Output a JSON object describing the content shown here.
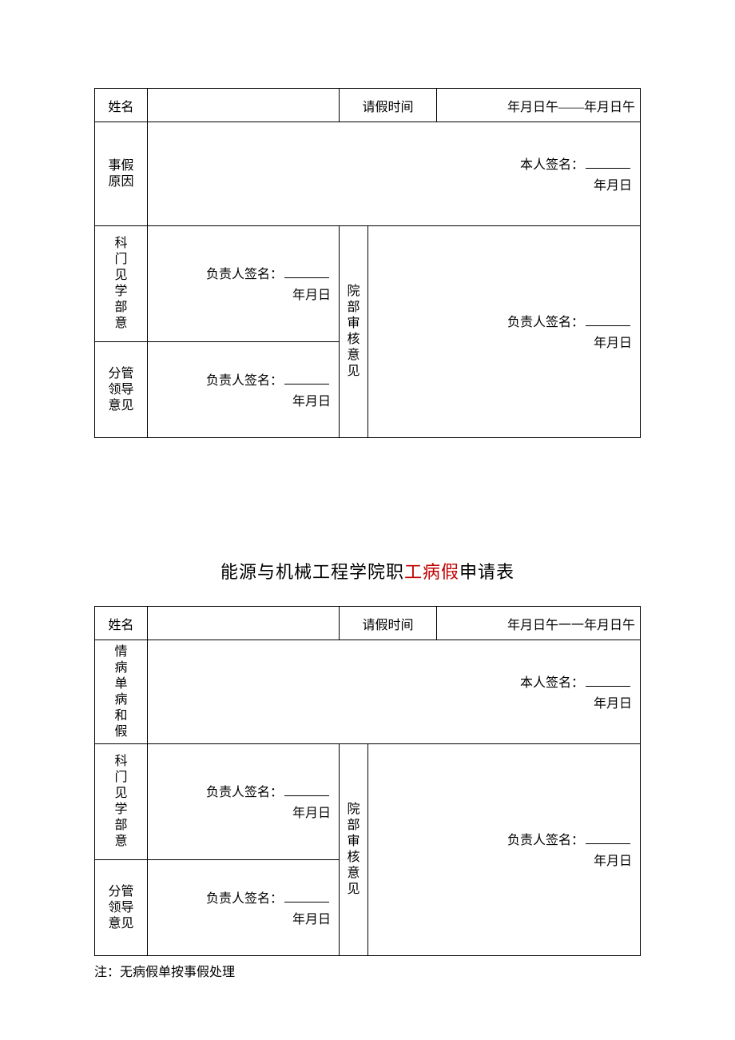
{
  "table1": {
    "row1": {
      "name_label": "姓名",
      "time_label": "请假时间",
      "time_value": "年月日午——年月日午"
    },
    "reason": {
      "label_l1": "事假",
      "label_l2": "原因",
      "sig_label": "本人签名：",
      "date": "年月日"
    },
    "dept": {
      "c1": "科",
      "c2": "门",
      "c3": "见",
      "c4": "学",
      "c5": "部",
      "c6": "意",
      "sig_label": "负责人签名：",
      "date": "年月日"
    },
    "review": {
      "c1": "院",
      "c2": "部",
      "c3": "审",
      "c4": "核",
      "c5": "意",
      "c6": "见",
      "sig_label": "负责人签名：",
      "date": "年月日"
    },
    "leader": {
      "l1": "分管",
      "l2": "领导",
      "l3": "意见",
      "sig_label": "负责人签名：",
      "date": "年月日"
    }
  },
  "title2": {
    "part1": "能源与机械工程学院职",
    "part2_red": "工病假",
    "part3": "申请表"
  },
  "table2": {
    "row1": {
      "name_label": "姓名",
      "time_label": "请假时间",
      "time_value": "年月日午一一年月日午"
    },
    "reason": {
      "c1": "情",
      "c2": "病",
      "c3": "单",
      "c4": "病",
      "c5": "和",
      "c6": "假",
      "sig_label": "本人签名：",
      "date": "年月日"
    },
    "dept": {
      "c1": "科",
      "c2": "门",
      "c3": "见",
      "c4": "学",
      "c5": "部",
      "c6": "意",
      "sig_label": "负责人签名：",
      "date": "年月日"
    },
    "review": {
      "c1": "院",
      "c2": "部",
      "c3": "审",
      "c4": "核",
      "c5": "意",
      "c6": "见",
      "sig_label": "负责人签名：",
      "date": "年月日"
    },
    "leader": {
      "l1": "分管",
      "l2": "领导",
      "l3": "意见",
      "sig_label": "负责人签名：",
      "date": "年月日"
    }
  },
  "note": "注：无病假单按事假处理"
}
